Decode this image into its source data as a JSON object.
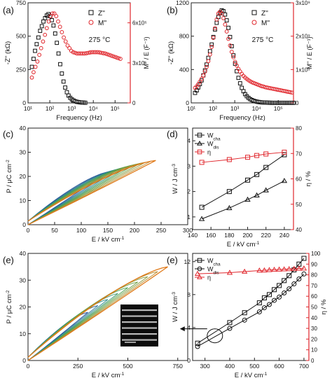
{
  "chart_data": [
    {
      "panel": "(a)",
      "type": "scatter",
      "xscale": "log",
      "xlim": [
        10,
        500000
      ],
      "xticks": [
        10,
        100,
        1000,
        10000,
        100000
      ],
      "xtick_labels": [
        "10¹",
        "10²",
        "10³",
        "10⁴",
        "10⁵"
      ],
      "ylim": [
        0,
        750
      ],
      "yticks": [
        0,
        250,
        500,
        750
      ],
      "y2lim": [
        0,
        7500000
      ],
      "y2ticks": [
        0,
        3000000,
        6000000
      ],
      "y2tick_labels": [
        "0",
        "3x10⁶",
        "6x10⁶"
      ],
      "xlabel": "Frequency (Hz)",
      "ylabel": "-Z'' (kΩ)",
      "y2label": "M'' / E (F⁻¹)",
      "annotation": "275 °C",
      "legend_position": "top-right",
      "series": [
        {
          "name": "Z''",
          "axis": "left",
          "marker": "square",
          "color": "#111111",
          "x": [
            15,
            18,
            21,
            25,
            30,
            36,
            43,
            51,
            61,
            73,
            87,
            104,
            124,
            148,
            177,
            211,
            252,
            301,
            359,
            428,
            511,
            610,
            728,
            869,
            1037,
            1238,
            1478,
            1764,
            2106,
            2513,
            3000,
            3581,
            4275
          ],
          "y": [
            270,
            330,
            390,
            440,
            490,
            540,
            575,
            610,
            635,
            655,
            665,
            650,
            620,
            580,
            520,
            450,
            370,
            290,
            220,
            160,
            115,
            80,
            55,
            38,
            26,
            18,
            12,
            8,
            6,
            4,
            3,
            2,
            1
          ]
        },
        {
          "name": "M''",
          "axis": "right",
          "marker": "circle",
          "color": "#e0262c",
          "x": [
            15,
            18,
            22,
            27,
            33,
            40,
            49,
            60,
            73,
            89,
            109,
            133,
            162,
            198,
            242,
            295,
            360,
            440,
            537,
            656,
            800,
            977,
            1193,
            1456,
            1778,
            2171,
            2651,
            3237,
            3952,
            4826,
            5893,
            7196,
            8787,
            10730,
            13102,
            15998,
            19534,
            23852,
            29125,
            35564,
            43426,
            53026,
            64749,
            79063,
            96542,
            117885,
            143946,
            175768
          ],
          "y": [
            1900000,
            2300000,
            2700000,
            3100000,
            3600000,
            4100000,
            4600000,
            5100000,
            5600000,
            6100000,
            6500000,
            6700000,
            6700000,
            6500000,
            6100000,
            5700000,
            5300000,
            4900000,
            4600000,
            4300000,
            4100000,
            3900000,
            3800000,
            3750000,
            3700000,
            3700000,
            3700000,
            3700000,
            3700000,
            3720000,
            3750000,
            3780000,
            3800000,
            3800000,
            3800000,
            3800000,
            3780000,
            3750000,
            3720000,
            3700000,
            3650000,
            3600000,
            3550000,
            3500000,
            3450000,
            3400000,
            3350000,
            3300000
          ]
        }
      ]
    },
    {
      "panel": "(b)",
      "type": "scatter",
      "xscale": "log",
      "xlim": [
        10,
        500000
      ],
      "xticks": [
        10,
        100,
        1000,
        10000,
        100000
      ],
      "xtick_labels": [
        "10¹",
        "10²",
        "10³",
        "10⁴",
        "10⁵"
      ],
      "ylim": [
        0,
        1200
      ],
      "yticks": [
        0,
        400,
        800,
        1200
      ],
      "y2lim": [
        0,
        3000000000
      ],
      "y2ticks": [
        0,
        1000000000,
        2000000000,
        3000000000
      ],
      "y2tick_labels": [
        "0",
        "1x10⁹",
        "2x10⁹",
        "3x10⁹"
      ],
      "xlabel": "Frequency (Hz)",
      "ylabel": "-Z'' (kΩ)",
      "y2label": "M'' / E (F⁻¹)",
      "annotation": "275 °C",
      "legend_position": "top-right",
      "series": [
        {
          "name": "Z''",
          "axis": "left",
          "marker": "square",
          "color": "#111111",
          "x": [
            15,
            18,
            21,
            25,
            30,
            36,
            43,
            51,
            61,
            73,
            87,
            104,
            124,
            148,
            177,
            211,
            252,
            301,
            359,
            428,
            511,
            610,
            728,
            869,
            1037,
            1238,
            1478,
            1764,
            2106,
            2513,
            3000,
            3581,
            4275,
            5103,
            6091,
            7271,
            8680,
            10361,
            12368,
            14764,
            17624,
            21038,
            25113,
            29977,
            35784,
            42716,
            50990,
            60868,
            72659,
            86733,
            103535,
            123592,
            147533,
            176113,
            210228,
            250952,
            299564,
            357593,
            426863,
            509553
          ],
          "y": [
            120,
            150,
            185,
            225,
            270,
            330,
            390,
            460,
            540,
            620,
            700,
            790,
            880,
            960,
            1030,
            1080,
            1110,
            1100,
            1060,
            990,
            900,
            790,
            680,
            570,
            470,
            380,
            300,
            235,
            180,
            140,
            105,
            80,
            60,
            45,
            35,
            26,
            20,
            15,
            11,
            8,
            6,
            5,
            4,
            3,
            2,
            2,
            1,
            1,
            1,
            1,
            1,
            1,
            1,
            1,
            1,
            1,
            1,
            1,
            1,
            1
          ]
        },
        {
          "name": "M''",
          "axis": "right",
          "marker": "circle",
          "color": "#e0262c",
          "x": [
            15,
            18,
            21,
            25,
            30,
            36,
            43,
            51,
            61,
            73,
            87,
            104,
            124,
            148,
            177,
            211,
            252,
            301,
            359,
            428,
            511,
            610,
            728,
            869,
            1037,
            1238,
            1478,
            1764,
            2106,
            2513,
            3000,
            3581,
            4275,
            5103,
            6091,
            7271,
            8680,
            10361,
            12368,
            14764,
            17624,
            21038,
            25113,
            29977,
            35784,
            42716,
            50990,
            60868,
            72659,
            86733,
            103535,
            123592,
            147533,
            176113,
            210228,
            250952,
            299564,
            357593,
            426863
          ],
          "y": [
            450000000,
            500000000,
            560000000,
            640000000,
            720000000,
            820000000,
            940000000,
            1080000000,
            1250000000,
            1450000000,
            1680000000,
            1950000000,
            2240000000,
            2500000000,
            2680000000,
            2730000000,
            2680000000,
            2540000000,
            2350000000,
            2140000000,
            1920000000,
            1720000000,
            1530000000,
            1370000000,
            1230000000,
            1120000000,
            1020000000,
            940000000,
            870000000,
            810000000,
            760000000,
            720000000,
            680000000,
            650000000,
            620000000,
            600000000,
            580000000,
            560000000,
            540000000,
            520000000,
            500000000,
            490000000,
            470000000,
            460000000,
            450000000,
            440000000,
            430000000,
            420000000,
            410000000,
            400000000,
            390000000,
            380000000,
            370000000,
            360000000,
            350000000,
            340000000,
            330000000,
            320000000,
            310000000
          ]
        }
      ]
    },
    {
      "panel": "(c)",
      "type": "line",
      "xlim": [
        0,
        300
      ],
      "xticks": [
        0,
        50,
        100,
        150,
        200,
        250,
        300
      ],
      "ylim": [
        0,
        40
      ],
      "yticks": [
        0,
        10,
        20,
        30,
        40
      ],
      "xlabel": "E / kV cm⁻¹",
      "ylabel": "P / μC cm⁻²",
      "loop_family": {
        "count": 10,
        "e_max": [
          150,
          160,
          170,
          180,
          190,
          200,
          210,
          220,
          230,
          240
        ],
        "p_max": [
          21.8,
          22.4,
          23.0,
          23.6,
          24.2,
          24.8,
          25.3,
          25.8,
          26.2,
          26.6
        ],
        "p_remanent": 1.5,
        "color_ramp": [
          "#1f4e99",
          "#2a8a8a",
          "#4aa04a",
          "#8a9a3a",
          "#e07a1a"
        ]
      }
    },
    {
      "panel": "(d)",
      "type": "line",
      "xlim": [
        140,
        250
      ],
      "xticks": [
        140,
        160,
        180,
        200,
        220,
        240
      ],
      "ylim": [
        0.5,
        4.5
      ],
      "yticks": [
        1,
        2,
        3,
        4
      ],
      "y2lim": [
        40,
        80
      ],
      "y2ticks": [
        40,
        50,
        60,
        70,
        80
      ],
      "xlabel": "E / kV cm⁻¹",
      "ylabel": "W / J cm⁻³",
      "y2label": "η / %",
      "legend_position": "top-left",
      "series": [
        {
          "name": "W_cha",
          "axis": "left",
          "marker": "square",
          "color": "#111111",
          "x": [
            150,
            180,
            200,
            210,
            220,
            240
          ],
          "y": [
            1.38,
            2.0,
            2.45,
            2.67,
            2.95,
            3.45
          ]
        },
        {
          "name": "W_dis",
          "axis": "left",
          "marker": "triangle",
          "color": "#111111",
          "x": [
            150,
            180,
            200,
            210,
            220,
            240
          ],
          "y": [
            0.92,
            1.35,
            1.68,
            1.85,
            2.05,
            2.42
          ]
        },
        {
          "name": "η",
          "axis": "right",
          "marker": "square",
          "color": "#e0262c",
          "x": [
            150,
            180,
            200,
            210,
            220,
            240
          ],
          "y": [
            66.5,
            67.6,
            68.5,
            69.2,
            69.8,
            70.5
          ]
        }
      ]
    },
    {
      "panel": "(e)",
      "type": "line",
      "xlim": [
        0,
        800
      ],
      "xticks": [
        0,
        250,
        500,
        750
      ],
      "ylim": [
        0,
        40
      ],
      "yticks": [
        0,
        10,
        20,
        30,
        40
      ],
      "xlabel": "E / kV cm⁻¹",
      "ylabel": "P / μC cm⁻²",
      "inset_scale_label": "10 μm",
      "loop_family": {
        "count": 9,
        "e_max": [
          300,
          350,
          400,
          450,
          500,
          550,
          600,
          650,
          700
        ],
        "p_max": [
          18.0,
          20.5,
          22.8,
          25.0,
          27.2,
          29.3,
          31.3,
          33.2,
          35.0
        ],
        "p_remanent": 1.2,
        "color_ramp": [
          "#1f4e99",
          "#2a8a8a",
          "#4aa04a",
          "#8a9a3a",
          "#e07a1a"
        ]
      }
    },
    {
      "panel": "(e)",
      "type": "line",
      "xlim": [
        250,
        720
      ],
      "xticks": [
        300,
        400,
        500,
        600,
        700
      ],
      "ylim": [
        0,
        13
      ],
      "yticks": [
        0,
        4,
        8,
        12
      ],
      "y2lim": [
        0,
        100
      ],
      "y2ticks": [
        0,
        10,
        20,
        30,
        40,
        50,
        60,
        70,
        80,
        90,
        100
      ],
      "xlabel": "E / kV cm⁻¹",
      "ylabel": "W / J cm⁻³",
      "y2label": "η / %",
      "legend_position": "top-left",
      "series": [
        {
          "name": "W_cha",
          "axis": "left",
          "marker": "square",
          "color": "#111111",
          "x": [
            270,
            400,
            460,
            520,
            540,
            560,
            580,
            600,
            620,
            640,
            660,
            680,
            700
          ],
          "y": [
            2.1,
            4.6,
            5.8,
            7.0,
            7.6,
            8.0,
            8.6,
            9.1,
            9.7,
            10.3,
            11.0,
            11.7,
            12.4
          ]
        },
        {
          "name": "W_dis",
          "axis": "left",
          "marker": "circle",
          "color": "#111111",
          "x": [
            270,
            400,
            460,
            520,
            540,
            560,
            580,
            600,
            620,
            640,
            660,
            680,
            700
          ],
          "y": [
            1.7,
            3.9,
            4.9,
            5.9,
            6.4,
            6.8,
            7.3,
            7.7,
            8.2,
            8.7,
            9.3,
            9.9,
            10.5
          ]
        },
        {
          "name": "η",
          "axis": "right",
          "marker": "triangle",
          "color": "#e0262c",
          "x": [
            270,
            400,
            460,
            520,
            540,
            560,
            580,
            600,
            620,
            640,
            660,
            680,
            700
          ],
          "y": [
            81.0,
            82.0,
            83.0,
            84.0,
            84.2,
            84.5,
            84.8,
            85.0,
            85.2,
            85.4,
            85.6,
            85.8,
            86.0
          ]
        }
      ]
    }
  ]
}
